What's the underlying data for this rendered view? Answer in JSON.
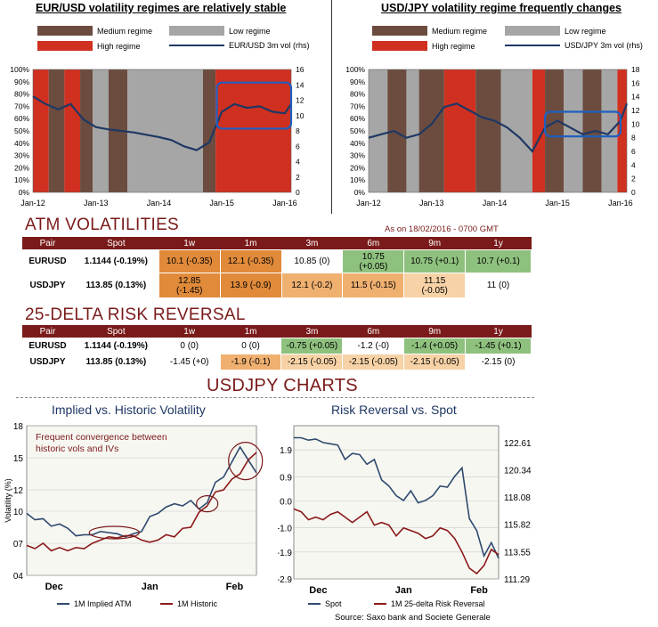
{
  "colors": {
    "high": "#d03020",
    "medium": "#6b4c3f",
    "low": "#a6a6a6",
    "vol_line": "#1f3864",
    "maroon": "#7a1a1a",
    "implied": "#2f4a6e",
    "historic": "#8b1a1a",
    "green": "#8fc17e",
    "orange_dark": "#e08a3a",
    "orange_mid": "#efb070",
    "orange_light": "#f6d2a6"
  },
  "panel_left": {
    "title": "EUR/USD volatility regimes are relatively stable",
    "legend": {
      "medium": "Medium regime",
      "low": "Low regime",
      "high": "High regime",
      "line": "EUR/USD 3m vol (rhs)"
    }
  },
  "panel_right": {
    "title": "USD/JPY volatility regime frequently changes",
    "legend": {
      "medium": "Medium regime",
      "low": "Low regime",
      "high": "High regime",
      "line": "USD/JPY 3m vol (rhs)"
    }
  },
  "atm": {
    "title": "ATM VOLATILITIES",
    "as_of": "As on 18/02/2016 - 0700 GMT",
    "headers": [
      "Pair",
      "Spot",
      "1w",
      "1m",
      "3m",
      "6m",
      "9m",
      "1y"
    ],
    "rows": [
      {
        "pair": "EURUSD",
        "spot": "1.1144 (-0.19%)",
        "cells": [
          "10.1 (-0.35)",
          "12.1 (-0.35)",
          "10.85 (0)",
          "10.75\n(+0.05)",
          "10.75 (+0.1)",
          "10.7 (+0.1)"
        ]
      },
      {
        "pair": "USDJPY",
        "spot": "113.85 (0.13%)",
        "cells": [
          "12.85\n(-1.45)",
          "13.9 (-0.9)",
          "12.1 (-0.2)",
          "11.5 (-0.15)",
          "11.15\n(-0.05)",
          "11 (0)"
        ]
      }
    ]
  },
  "rr": {
    "title": "25-DELTA RISK REVERSAL",
    "headers": [
      "Pair",
      "Spot",
      "1w",
      "1m",
      "3m",
      "6m",
      "9m",
      "1y"
    ],
    "rows": [
      {
        "pair": "EURUSD",
        "spot": "1.1144 (-0.19%)",
        "cells": [
          "0 (0)",
          "0 (0)",
          "-0.75 (+0.05)",
          "-1.2 (-0)",
          "-1.4 (+0.05)",
          "-1.45 (+0.1)"
        ]
      },
      {
        "pair": "USDJPY",
        "spot": "113.85 (0.13%)",
        "cells": [
          "-1.45 (+0)",
          "-1.9 (-0.1)",
          "-2.15 (-0.05)",
          "-2.15 (-0.05)",
          "-2.15 (-0.05)",
          "-2.15 (0)"
        ]
      }
    ]
  },
  "usdjpy_charts_title": "USDJPY CHARTS",
  "implied_chart": {
    "title": "Implied vs. Historic Volatility",
    "annotation": "Frequent convergence between historic vols and IVs",
    "legend": [
      "1M Implied ATM",
      "1M Historic"
    ]
  },
  "rr_chart": {
    "title": "Risk Reversal vs. Spot",
    "legend": [
      "Spot",
      "1M 25-delta Risk Reversal"
    ]
  },
  "source": "Source: Saxo bank and Societe Generale",
  "chart_data": [
    {
      "type": "area",
      "title": "EUR/USD volatility regimes are relatively stable",
      "x_ticks": [
        "Jan-12",
        "Jan-13",
        "Jan-14",
        "Jan-15",
        "Jan-16"
      ],
      "ylim_left": [
        0,
        100
      ],
      "y_ticks_left": [
        "0%",
        "10%",
        "20%",
        "30%",
        "40%",
        "50%",
        "60%",
        "70%",
        "80%",
        "90%",
        "100%"
      ],
      "ylim_right": [
        0,
        16
      ],
      "y_ticks_right": [
        "0",
        "2",
        "4",
        "6",
        "8",
        "10",
        "12",
        "14",
        "16"
      ],
      "regime_bands": [
        {
          "start": 2012.0,
          "end": 2012.25,
          "regime": "high"
        },
        {
          "start": 2012.25,
          "end": 2012.5,
          "regime": "medium"
        },
        {
          "start": 2012.5,
          "end": 2012.75,
          "regime": "high"
        },
        {
          "start": 2012.75,
          "end": 2012.95,
          "regime": "medium"
        },
        {
          "start": 2012.95,
          "end": 2013.2,
          "regime": "low"
        },
        {
          "start": 2013.2,
          "end": 2013.5,
          "regime": "medium"
        },
        {
          "start": 2013.5,
          "end": 2014.7,
          "regime": "low"
        },
        {
          "start": 2014.7,
          "end": 2014.9,
          "regime": "medium"
        },
        {
          "start": 2014.9,
          "end": 2016.1,
          "regime": "high"
        }
      ],
      "series": [
        {
          "name": "EUR/USD 3m vol (rhs)",
          "x": [
            2012.0,
            2012.2,
            2012.4,
            2012.6,
            2012.8,
            2013.0,
            2013.2,
            2013.4,
            2013.6,
            2013.8,
            2014.0,
            2014.2,
            2014.4,
            2014.6,
            2014.8,
            2015.0,
            2015.2,
            2015.4,
            2015.6,
            2015.8,
            2016.0,
            2016.1
          ],
          "values": [
            12.5,
            11.5,
            10.8,
            11.5,
            9.5,
            8.5,
            8.2,
            8.0,
            7.8,
            7.5,
            7.2,
            6.8,
            6.0,
            5.5,
            6.5,
            10.5,
            11.5,
            11.0,
            11.2,
            10.5,
            10.3,
            11.5
          ]
        }
      ]
    },
    {
      "type": "area",
      "title": "USD/JPY volatility regime frequently changes",
      "x_ticks": [
        "Jan-12",
        "Jan-13",
        "Jan-14",
        "Jan-15",
        "Jan-16"
      ],
      "ylim_left": [
        0,
        100
      ],
      "y_ticks_left": [
        "0%",
        "10%",
        "20%",
        "30%",
        "40%",
        "50%",
        "60%",
        "70%",
        "80%",
        "90%",
        "100%"
      ],
      "ylim_right": [
        0,
        18
      ],
      "y_ticks_right": [
        "0",
        "2",
        "4",
        "6",
        "8",
        "10",
        "12",
        "14",
        "16",
        "18"
      ],
      "regime_bands": [
        {
          "start": 2012.0,
          "end": 2012.3,
          "regime": "low"
        },
        {
          "start": 2012.3,
          "end": 2012.6,
          "regime": "medium"
        },
        {
          "start": 2012.6,
          "end": 2012.8,
          "regime": "low"
        },
        {
          "start": 2012.8,
          "end": 2013.2,
          "regime": "medium"
        },
        {
          "start": 2013.2,
          "end": 2013.7,
          "regime": "high"
        },
        {
          "start": 2013.7,
          "end": 2014.1,
          "regime": "medium"
        },
        {
          "start": 2014.1,
          "end": 2014.6,
          "regime": "low"
        },
        {
          "start": 2014.6,
          "end": 2014.8,
          "regime": "high"
        },
        {
          "start": 2014.8,
          "end": 2015.1,
          "regime": "medium"
        },
        {
          "start": 2015.1,
          "end": 2015.4,
          "regime": "low"
        },
        {
          "start": 2015.4,
          "end": 2015.7,
          "regime": "medium"
        },
        {
          "start": 2015.7,
          "end": 2015.95,
          "regime": "low"
        },
        {
          "start": 2015.95,
          "end": 2016.1,
          "regime": "high"
        }
      ],
      "series": [
        {
          "name": "USD/JPY 3m vol (rhs)",
          "x": [
            2012.0,
            2012.2,
            2012.4,
            2012.6,
            2012.8,
            2013.0,
            2013.2,
            2013.4,
            2013.6,
            2013.8,
            2014.0,
            2014.2,
            2014.4,
            2014.6,
            2014.8,
            2015.0,
            2015.2,
            2015.4,
            2015.6,
            2015.8,
            2016.0,
            2016.1
          ],
          "values": [
            8.0,
            8.5,
            9.0,
            8.0,
            8.5,
            10.0,
            12.5,
            13.0,
            12.0,
            11.0,
            10.5,
            9.5,
            8.0,
            6.0,
            9.5,
            10.5,
            9.5,
            8.5,
            9.0,
            8.5,
            10.5,
            13.0
          ]
        }
      ]
    },
    {
      "type": "line",
      "title": "Implied vs. Historic Volatility",
      "ylabel": "Volatility (%)",
      "x_ticks": [
        "Dec",
        "Jan",
        "Feb"
      ],
      "ylim": [
        4,
        18
      ],
      "y_ticks": [
        "04",
        "07",
        "10",
        "12",
        "15",
        "18"
      ],
      "series": [
        {
          "name": "1M Implied ATM",
          "x": [
            0,
            3,
            6,
            9,
            12,
            15,
            18,
            21,
            24,
            27,
            30,
            33,
            36,
            39,
            42,
            45,
            48,
            51,
            54,
            57,
            60,
            63,
            66,
            69,
            72,
            75,
            78,
            81,
            84
          ],
          "values": [
            9.8,
            9.2,
            9.3,
            8.6,
            8.8,
            8.4,
            7.7,
            7.8,
            7.8,
            8.1,
            8.0,
            7.9,
            7.6,
            7.9,
            8.1,
            9.5,
            9.8,
            10.4,
            10.7,
            10.5,
            11.0,
            10.2,
            10.8,
            12.7,
            13.2,
            14.6,
            16.0,
            14.8,
            13.6
          ]
        },
        {
          "name": "1M Historic",
          "x": [
            0,
            3,
            6,
            9,
            12,
            15,
            18,
            21,
            24,
            27,
            30,
            33,
            36,
            39,
            42,
            45,
            48,
            51,
            54,
            57,
            60,
            63,
            66,
            69,
            72,
            75,
            78,
            81,
            84
          ],
          "values": [
            6.8,
            6.5,
            7.0,
            6.3,
            6.6,
            6.3,
            6.6,
            6.5,
            7.0,
            7.3,
            7.6,
            7.5,
            7.7,
            7.7,
            7.3,
            7.1,
            7.3,
            7.8,
            7.6,
            8.4,
            8.5,
            9.9,
            10.5,
            11.8,
            12.0,
            13.0,
            13.5,
            14.8,
            15.5
          ]
        }
      ]
    },
    {
      "type": "line",
      "title": "Risk Reversal vs. Spot",
      "x_ticks": [
        "Dec",
        "Jan",
        "Feb"
      ],
      "ylim_left": [
        -2.9,
        2.8
      ],
      "y_ticks_left": [
        "-2.9",
        "-1.9",
        "-1.0",
        "0.0",
        "0.9",
        "1.9"
      ],
      "ylim_right": [
        111.29,
        124.0
      ],
      "y_ticks_right": [
        "111.29",
        "113.55",
        "115.82",
        "118.08",
        "120.34",
        "122.61"
      ],
      "series": [
        {
          "name": "Spot",
          "axis": "right",
          "x": [
            0,
            3,
            6,
            9,
            12,
            15,
            18,
            21,
            24,
            27,
            30,
            33,
            36,
            39,
            42,
            45,
            48,
            51,
            54,
            57,
            60,
            63,
            66,
            69,
            72,
            75,
            78,
            81,
            84
          ],
          "values": [
            123.0,
            123.0,
            122.8,
            122.9,
            122.6,
            122.5,
            122.4,
            121.2,
            121.7,
            121.6,
            120.8,
            121.2,
            119.5,
            119.0,
            118.2,
            117.8,
            118.6,
            117.6,
            117.8,
            118.2,
            119.0,
            118.9,
            119.8,
            120.5,
            116.3,
            115.3,
            113.2,
            114.3,
            113.0
          ]
        },
        {
          "name": "1M 25-delta Risk Reversal",
          "axis": "left",
          "x": [
            0,
            3,
            6,
            9,
            12,
            15,
            18,
            21,
            24,
            27,
            30,
            33,
            36,
            39,
            42,
            45,
            48,
            51,
            54,
            57,
            60,
            63,
            66,
            69,
            72,
            75,
            78,
            81,
            84
          ],
          "values": [
            -0.3,
            -0.4,
            -0.7,
            -0.6,
            -0.7,
            -0.5,
            -0.4,
            -0.6,
            -0.8,
            -0.6,
            -0.4,
            -0.9,
            -0.8,
            -0.9,
            -1.3,
            -1.0,
            -1.1,
            -1.2,
            -1.4,
            -1.3,
            -1.0,
            -1.1,
            -1.4,
            -1.9,
            -2.5,
            -2.7,
            -2.4,
            -1.8,
            -2.0
          ]
        }
      ]
    }
  ]
}
